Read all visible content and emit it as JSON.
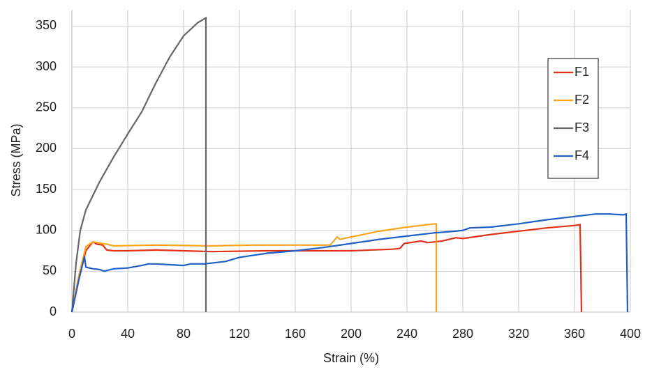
{
  "chart_data": {
    "type": "line",
    "x_label": "Strain (%)",
    "y_label": "Stress (MPa)",
    "xlim": [
      0,
      400
    ],
    "xticks": [
      0,
      40,
      80,
      120,
      160,
      200,
      240,
      280,
      320,
      360,
      400
    ],
    "ylim": [
      0,
      370
    ],
    "yticks": [
      0,
      50,
      100,
      150,
      200,
      250,
      300,
      350
    ],
    "grid": true,
    "legend": "right",
    "series": [
      {
        "name": "F1",
        "color": "#e0321a",
        "x": [
          0,
          5,
          10,
          15,
          18,
          22,
          25,
          30,
          40,
          60,
          80,
          100,
          140,
          180,
          200,
          230,
          235,
          238,
          250,
          255,
          265,
          275,
          280,
          300,
          320,
          340,
          360,
          364,
          365
        ],
        "values": [
          0,
          40,
          75,
          86,
          83,
          82,
          76,
          75,
          75,
          76,
          75,
          74,
          75,
          75,
          75,
          77,
          78,
          84,
          87,
          85,
          87,
          91,
          90,
          95,
          99,
          103,
          106,
          107,
          0
        ]
      },
      {
        "name": "F2",
        "color": "#f8a51c",
        "x": [
          0,
          5,
          10,
          15,
          18,
          25,
          30,
          60,
          100,
          130,
          160,
          185,
          190,
          192,
          200,
          220,
          240,
          260,
          261,
          261
        ],
        "values": [
          0,
          45,
          80,
          86,
          85,
          83,
          81,
          82,
          81,
          82,
          82,
          82,
          92,
          89,
          92,
          99,
          104,
          108,
          108,
          0
        ]
      },
      {
        "name": "F3",
        "color": "#666666",
        "x": [
          0,
          3,
          6,
          10,
          20,
          30,
          40,
          50,
          60,
          70,
          80,
          90,
          96,
          96
        ],
        "values": [
          0,
          60,
          100,
          125,
          160,
          190,
          218,
          245,
          280,
          312,
          338,
          354,
          360,
          0
        ]
      },
      {
        "name": "F4",
        "color": "#1f5fc4",
        "x": [
          0,
          5,
          9,
          10,
          15,
          20,
          23,
          30,
          40,
          50,
          55,
          60,
          70,
          80,
          85,
          95,
          110,
          120,
          140,
          160,
          180,
          200,
          220,
          240,
          260,
          275,
          280,
          285,
          300,
          320,
          340,
          360,
          375,
          385,
          395,
          397,
          398
        ],
        "values": [
          0,
          40,
          68,
          55,
          53,
          52,
          50,
          53,
          54,
          57,
          59,
          59,
          58,
          57,
          59,
          59,
          62,
          67,
          72,
          75,
          79,
          84,
          89,
          93,
          97,
          99,
          100,
          103,
          104,
          108,
          113,
          117,
          120,
          120,
          119,
          120,
          0
        ]
      }
    ]
  }
}
